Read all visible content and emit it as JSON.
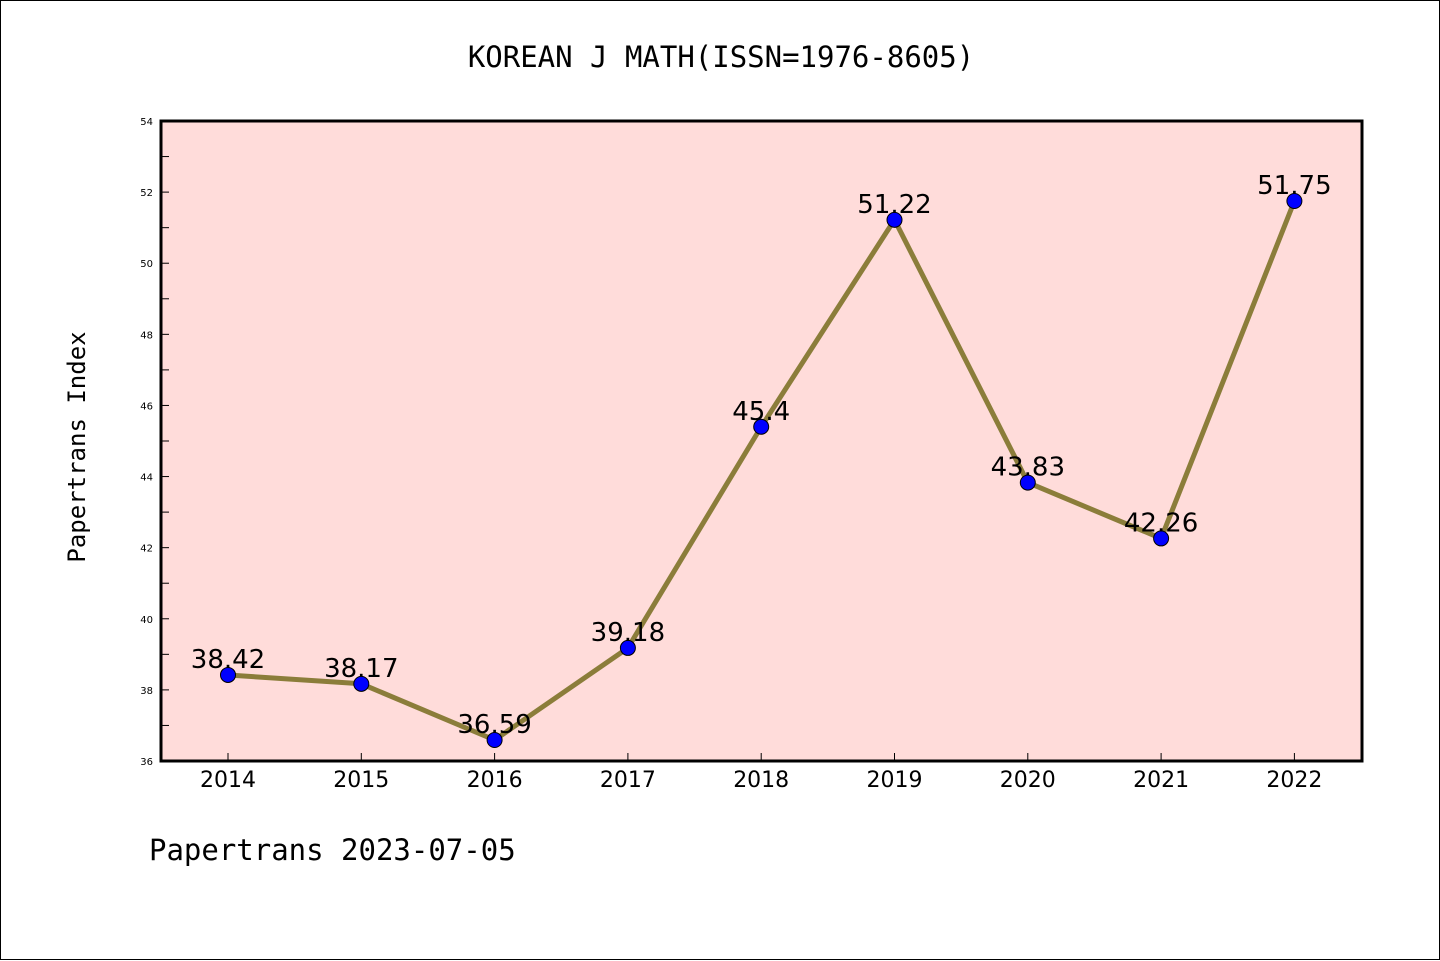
{
  "chart_data": {
    "type": "line",
    "title": "KOREAN J MATH(ISSN=1976-8605)",
    "ylabel": "Papertrans Index",
    "xlabel": "",
    "categories": [
      "2014",
      "2015",
      "2016",
      "2017",
      "2018",
      "2019",
      "2020",
      "2021",
      "2022"
    ],
    "values": [
      38.42,
      38.17,
      36.59,
      39.18,
      45.4,
      51.22,
      43.83,
      42.26,
      51.75
    ],
    "data_labels": [
      "38.42",
      "38.17",
      "36.59",
      "39.18",
      "45.4",
      "51.22",
      "43.83",
      "42.26",
      "51.75"
    ],
    "ylim": [
      36,
      54
    ],
    "yticks": [
      36,
      38,
      40,
      42,
      44,
      46,
      48,
      50,
      52,
      54
    ],
    "grid": false,
    "colors": {
      "plot_background": "#FFDCDA",
      "line": "#8B7D3A",
      "marker": "#0000FF"
    }
  },
  "footer": {
    "text": "Papertrans 2023-07-05"
  }
}
